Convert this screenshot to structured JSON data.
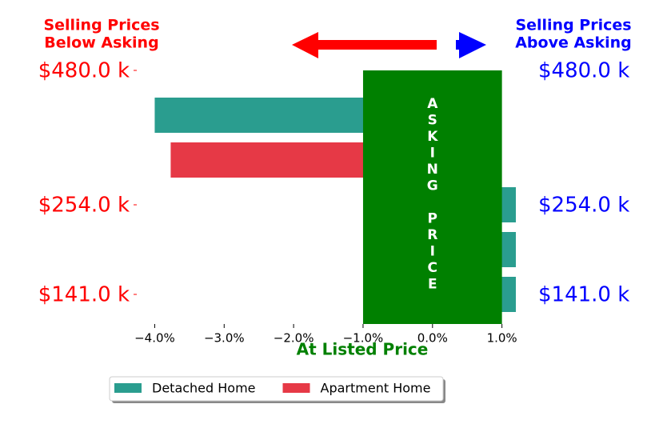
{
  "chart_data": {
    "type": "bar",
    "orientation": "horizontal",
    "annotations": {
      "left": [
        "Selling Prices",
        "Below Asking"
      ],
      "right": [
        "Selling Prices",
        "Above Asking"
      ]
    },
    "xlabel": "At Listed Price",
    "categories": [
      "$480.0 k",
      null,
      null,
      "$254.0 k",
      null,
      "$141.0 k"
    ],
    "series": [
      {
        "name": "Detached Home",
        "color": "#2a9d8f",
        "values": [
          null,
          -4.0,
          null,
          1.2,
          1.2,
          1.2
        ]
      },
      {
        "name": "Apartment Home",
        "color": "#e63946",
        "values": [
          null,
          null,
          -3.77,
          null,
          null,
          null
        ]
      }
    ],
    "asking_band": {
      "label": "ASKING PRICE",
      "range": [
        -1,
        1
      ],
      "color": "#008000"
    },
    "xlim": [
      -4.27,
      1.2
    ],
    "xticks": [
      {
        "value": -4,
        "label": "−4.0%"
      },
      {
        "value": -3,
        "label": "−3.0%"
      },
      {
        "value": -2,
        "label": "−2.0%"
      },
      {
        "value": -1,
        "label": "−1.0%"
      },
      {
        "value": 0,
        "label": "0.0%"
      },
      {
        "value": 1,
        "label": "1.0%"
      }
    ]
  }
}
